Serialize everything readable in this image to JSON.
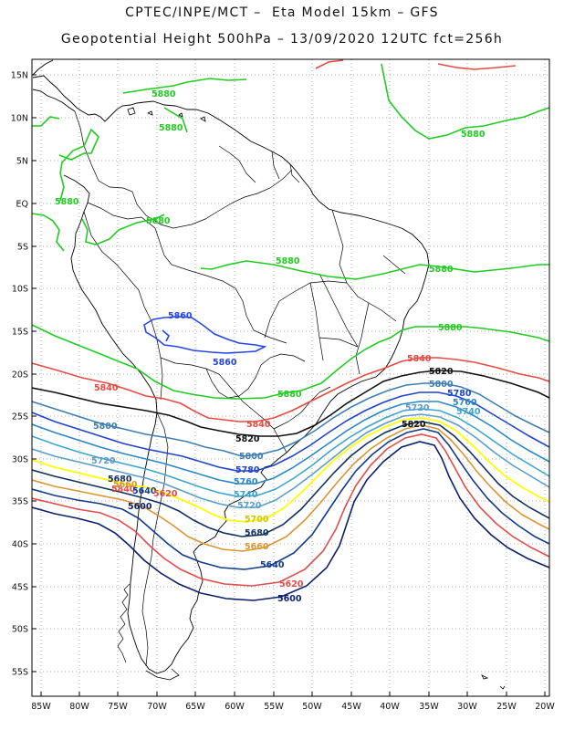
{
  "header": {
    "title_line1": "CPTEC/INPE/MCT –  Eta Model 15km – GFS",
    "title_line2": "Geopotential Height 500hPa – 13/09/2020 12UTC fct=256h"
  },
  "map": {
    "latitude_labels": [
      "15N",
      "10N",
      "5N",
      "EQ",
      "5S",
      "10S",
      "15S",
      "20S",
      "25S",
      "30S",
      "35S",
      "40S",
      "45S",
      "50S",
      "55S"
    ],
    "longitude_labels": [
      "85W",
      "80W",
      "75W",
      "70W",
      "65W",
      "60W",
      "55W",
      "50W",
      "45W",
      "40W",
      "35W",
      "30W",
      "25W",
      "20W"
    ],
    "colors": {
      "c5880": "#21cc21",
      "c5860": "#2646e6",
      "c5840": "#e84a44",
      "c5820": "#111111",
      "c5800": "#3d7fb0",
      "c5780": "#1e44cc",
      "c5760": "#2b86c4",
      "c5740": "#3ca6cc",
      "c5720": "#5a9ec9",
      "c5700": "#ffff00",
      "c5680": "#10305e",
      "c5660": "#d99632",
      "c5640": "#123b8a",
      "c5620": "#e24c4c",
      "c5600": "#0c1f6b",
      "coast": "#000000",
      "grid": "#9a9a9a"
    },
    "contour_labels": {
      "l5880_a": "5880",
      "l5880_b": "5880",
      "l5880_c": "5880",
      "l5880_d": "5880",
      "l5880_e": "5880",
      "l5880_f": "5880",
      "l5880_g": "5880",
      "l5880_h": "5880",
      "l5880_i": "5880",
      "l5860_a": "5860",
      "l5860_b": "5860",
      "l5840_a": "5840",
      "l5840_b": "5840",
      "l5840_c": "5840",
      "l5840_d": "5840",
      "l5820_a": "5820",
      "l5820_b": "5820",
      "l5820_c": "5820",
      "l5800_a": "5800",
      "l5800_b": "5800",
      "l5800_c": "5800",
      "l5780_a": "5780",
      "l5780_b": "5780",
      "l5760_a": "5760",
      "l5760_b": "5760",
      "l5740_a": "5740",
      "l5740_b": "5740",
      "l5720_a": "5720",
      "l5720_b": "5720",
      "l5720_c": "5720",
      "l5700": "5700",
      "l5680_a": "5680",
      "l5680_b": "5680",
      "l5660_a": "5660",
      "l5660_b": "5660",
      "l5640_a": "5640",
      "l5640_b": "5640",
      "l5620_a": "5620",
      "l5620_b": "5620",
      "l5600_a": "5600",
      "l5600_b": "5600"
    }
  }
}
